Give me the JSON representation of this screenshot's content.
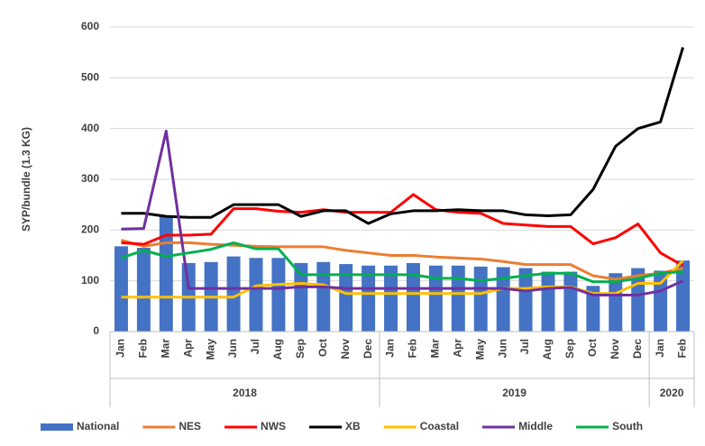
{
  "chart_data": {
    "type": "combo",
    "y_label": "SYP/bundle (1.3 KG)",
    "categories": [
      "Jan",
      "Feb",
      "Mar",
      "Apr",
      "May",
      "Jun",
      "Jul",
      "Aug",
      "Sep",
      "Oct",
      "Nov",
      "Dec",
      "Jan",
      "Feb",
      "Mar",
      "Apr",
      "May",
      "Jun",
      "Jul",
      "Aug",
      "Sep",
      "Oct",
      "Nov",
      "Dec",
      "Jan",
      "Feb"
    ],
    "x_groups": [
      {
        "label": "2018",
        "span": 12
      },
      {
        "label": "2019",
        "span": 12
      },
      {
        "label": "2020",
        "span": 2
      }
    ],
    "ylim": [
      0,
      600
    ],
    "yticks": [
      0,
      100,
      200,
      300,
      400,
      500,
      600
    ],
    "grid": true,
    "legend": "bottom",
    "series": [
      {
        "name": "National",
        "type": "bar",
        "color": "#4472c4",
        "values": [
          168,
          165,
          228,
          135,
          137,
          148,
          145,
          145,
          135,
          137,
          133,
          130,
          130,
          135,
          130,
          130,
          128,
          127,
          125,
          118,
          118,
          90,
          115,
          125,
          120,
          140
        ]
      },
      {
        "name": "NES",
        "type": "line",
        "color": "#ed7d31",
        "values": [
          180,
          168,
          175,
          175,
          172,
          170,
          168,
          167,
          167,
          167,
          160,
          155,
          150,
          150,
          147,
          145,
          143,
          138,
          132,
          132,
          132,
          110,
          103,
          110,
          115,
          125
        ]
      },
      {
        "name": "NWS",
        "type": "line",
        "color": "#ff0000",
        "values": [
          175,
          172,
          190,
          190,
          192,
          242,
          242,
          237,
          235,
          240,
          235,
          235,
          235,
          270,
          240,
          235,
          233,
          213,
          210,
          207,
          207,
          173,
          185,
          212,
          155,
          130
        ]
      },
      {
        "name": "XB",
        "type": "line",
        "color": "#000000",
        "values": [
          233,
          233,
          227,
          225,
          225,
          250,
          250,
          250,
          227,
          238,
          238,
          213,
          232,
          238,
          238,
          240,
          238,
          238,
          230,
          228,
          230,
          280,
          365,
          400,
          413,
          560
        ]
      },
      {
        "name": "Coastal",
        "type": "line",
        "color": "#ffc000",
        "values": [
          68,
          68,
          68,
          68,
          68,
          68,
          90,
          93,
          95,
          92,
          75,
          75,
          75,
          75,
          75,
          75,
          75,
          85,
          85,
          88,
          88,
          75,
          75,
          95,
          95,
          140
        ]
      },
      {
        "name": "Middle",
        "type": "line",
        "color": "#7030a0",
        "values": [
          202,
          203,
          395,
          85,
          85,
          85,
          85,
          85,
          88,
          88,
          85,
          85,
          85,
          85,
          85,
          85,
          85,
          85,
          80,
          85,
          87,
          72,
          72,
          72,
          80,
          100
        ]
      },
      {
        "name": "South",
        "type": "line",
        "color": "#00b050",
        "values": [
          145,
          160,
          148,
          155,
          162,
          175,
          163,
          163,
          112,
          112,
          112,
          112,
          112,
          112,
          105,
          105,
          100,
          105,
          110,
          115,
          115,
          98,
          98,
          105,
          115,
          118
        ]
      }
    ]
  }
}
